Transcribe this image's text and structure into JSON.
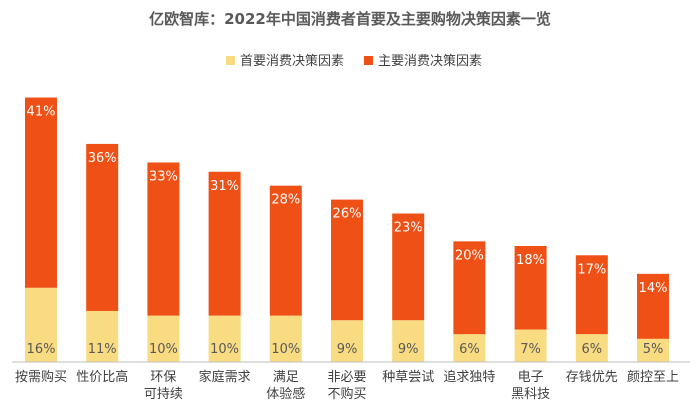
{
  "chart_data": {
    "type": "bar",
    "stacked": true,
    "title": "亿欧智库：2022年中国消费者首要及主要购物决策因素一览",
    "categories": [
      [
        "按需购买"
      ],
      [
        "性价比高"
      ],
      [
        "环保",
        "可持续"
      ],
      [
        "家庭需求"
      ],
      [
        "满足",
        "体验感"
      ],
      [
        "非必要",
        "不购买"
      ],
      [
        "种草尝试"
      ],
      [
        "追求独特"
      ],
      [
        "电子",
        "黑科技"
      ],
      [
        "存钱优先"
      ],
      [
        "颜控至上"
      ]
    ],
    "series": [
      {
        "name": "首要消费决策因素",
        "values": [
          16,
          11,
          10,
          10,
          10,
          9,
          9,
          6,
          7,
          6,
          5
        ],
        "labels": [
          "16%",
          "11%",
          "10%",
          "10%",
          "10%",
          "9%",
          "9%",
          "6%",
          "7%",
          "6%",
          "5%"
        ]
      },
      {
        "name": "主要消费决策因素",
        "values": [
          41,
          36,
          33,
          31,
          28,
          26,
          23,
          20,
          18,
          17,
          14
        ],
        "labels": [
          "41%",
          "36%",
          "33%",
          "31%",
          "28%",
          "26%",
          "23%",
          "20%",
          "18%",
          "17%",
          "14%"
        ]
      }
    ],
    "legend_position": "top-center",
    "grid": false,
    "ylim": [
      0,
      57
    ]
  },
  "colors": {
    "primary": "#F9DC82",
    "main": "#EE5016",
    "axis": "#BFBFBF",
    "title": "#595959",
    "text": "#404040"
  }
}
